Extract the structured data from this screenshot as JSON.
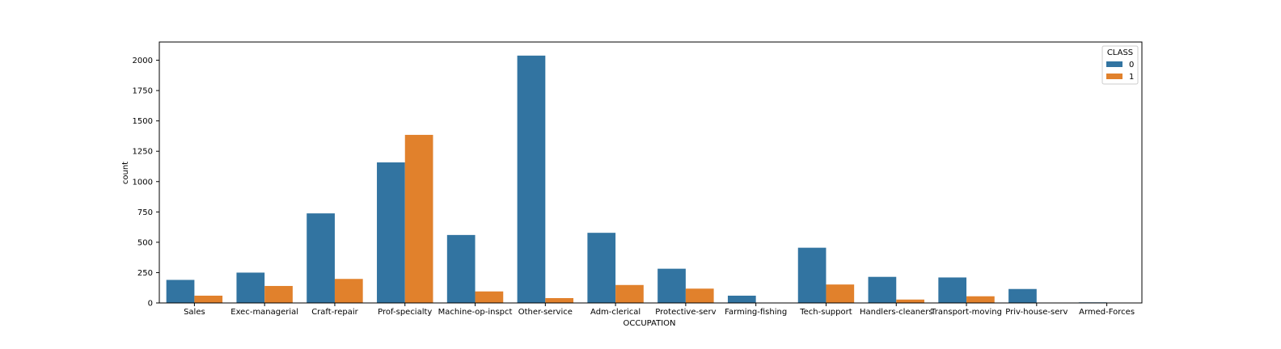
{
  "chart_data": {
    "type": "bar",
    "xlabel": "OCCUPATION",
    "ylabel": "count",
    "ylim": [
      0,
      2150
    ],
    "yticks": [
      0,
      250,
      500,
      750,
      1000,
      1250,
      1500,
      1750,
      2000
    ],
    "categories": [
      "Sales",
      "Exec-managerial",
      "Craft-repair",
      "Prof-specialty",
      "Machine-op-inspct",
      "Other-service",
      "Adm-clerical",
      "Protective-serv",
      "Farming-fishing",
      "Tech-support",
      "Handlers-cleaners",
      "Transport-moving",
      "Priv-house-serv",
      "Armed-Forces"
    ],
    "legend_title": "CLASS",
    "legend_position": "top-right",
    "grid": false,
    "series": [
      {
        "name": "0",
        "color": "#3274a1",
        "values": [
          190,
          250,
          738,
          1158,
          560,
          2038,
          578,
          282,
          60,
          455,
          215,
          210,
          115,
          5
        ]
      },
      {
        "name": "1",
        "color": "#e1812c",
        "values": [
          60,
          140,
          198,
          1385,
          95,
          40,
          148,
          118,
          0,
          152,
          28,
          55,
          0,
          0
        ]
      }
    ]
  }
}
